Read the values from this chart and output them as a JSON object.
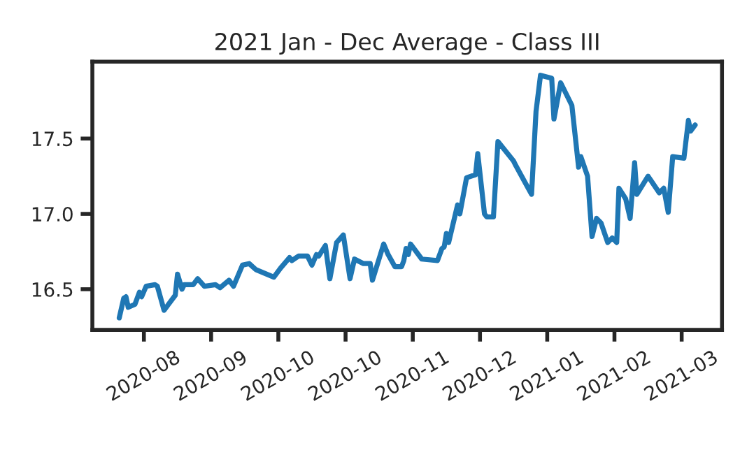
{
  "chart_data": {
    "type": "line",
    "title": "2021 Jan - Dec Average - Class III",
    "x": [
      "2020-07-22",
      "2020-07-24",
      "2020-07-25",
      "2020-07-26",
      "2020-07-29",
      "2020-07-31",
      "2020-08-01",
      "2020-08-03",
      "2020-08-07",
      "2020-08-08",
      "2020-08-11",
      "2020-08-13",
      "2020-08-16",
      "2020-08-17",
      "2020-08-19",
      "2020-08-20",
      "2020-08-24",
      "2020-08-26",
      "2020-08-29",
      "2020-09-03",
      "2020-09-05",
      "2020-09-09",
      "2020-09-11",
      "2020-09-15",
      "2020-09-18",
      "2020-09-21",
      "2020-09-29",
      "2020-10-02",
      "2020-10-06",
      "2020-10-07",
      "2020-10-10",
      "2020-10-14",
      "2020-10-16",
      "2020-10-18",
      "2020-10-19",
      "2020-10-22",
      "2020-10-24",
      "2020-10-27",
      "2020-10-30",
      "2020-11-02",
      "2020-11-04",
      "2020-11-08",
      "2020-11-11",
      "2020-11-12",
      "2020-11-17",
      "2020-11-19",
      "2020-11-22",
      "2020-11-25",
      "2020-11-26",
      "2020-11-27",
      "2020-11-28",
      "2020-11-29",
      "2020-12-04",
      "2020-12-11",
      "2020-12-13",
      "2020-12-14",
      "2020-12-15",
      "2020-12-16",
      "2020-12-20",
      "2020-12-21",
      "2020-12-24",
      "2020-12-28",
      "2020-12-29",
      "2021-01-01",
      "2021-01-02",
      "2021-01-05",
      "2021-01-07",
      "2021-01-14",
      "2021-01-15",
      "2021-01-22",
      "2021-01-24",
      "2021-01-26",
      "2021-01-31",
      "2021-02-01",
      "2021-02-04",
      "2021-02-09",
      "2021-02-12",
      "2021-02-13",
      "2021-02-16",
      "2021-02-18",
      "2021-02-20",
      "2021-02-22",
      "2021-02-25",
      "2021-02-27",
      "2021-03-01",
      "2021-03-02",
      "2021-03-05",
      "2021-03-07",
      "2021-03-09",
      "2021-03-10",
      "2021-03-15",
      "2021-03-20",
      "2021-03-22",
      "2021-03-24",
      "2021-03-26",
      "2021-03-31",
      "2021-04-02",
      "2021-04-03",
      "2021-04-05"
    ],
    "series": [
      {
        "color": "#1f77b4",
        "values": [
          16.31,
          16.44,
          16.45,
          16.38,
          16.4,
          16.48,
          16.45,
          16.52,
          16.53,
          16.52,
          16.36,
          16.4,
          16.46,
          16.6,
          16.5,
          16.53,
          16.53,
          16.57,
          16.52,
          16.53,
          16.51,
          16.56,
          16.52,
          16.66,
          16.67,
          16.63,
          16.58,
          16.64,
          16.71,
          16.69,
          16.72,
          16.72,
          16.66,
          16.73,
          16.72,
          16.79,
          16.57,
          16.81,
          16.86,
          16.57,
          16.7,
          16.67,
          16.67,
          16.56,
          16.8,
          16.73,
          16.65,
          16.65,
          16.69,
          16.77,
          16.73,
          16.8,
          16.7,
          16.69,
          16.77,
          16.78,
          16.87,
          16.81,
          17.06,
          17.0,
          17.24,
          17.26,
          17.4,
          17.0,
          16.98,
          16.98,
          17.48,
          17.35,
          17.32,
          17.13,
          17.68,
          17.92,
          17.9,
          17.63,
          17.87,
          17.72,
          17.31,
          17.38,
          17.25,
          16.85,
          16.97,
          16.94,
          16.81,
          16.84,
          16.81,
          17.17,
          17.1,
          16.97,
          17.34,
          17.13,
          17.25,
          17.14,
          17.17,
          17.01,
          17.38,
          17.37,
          17.62,
          17.55,
          17.59
        ]
      }
    ],
    "xlim": [
      "2020-07-10",
      "2021-04-17"
    ],
    "xticks": [
      {
        "value": "2020-08-02",
        "label": "2020-08"
      },
      {
        "value": "2020-09-01",
        "label": "2020-09"
      },
      {
        "value": "2020-10-01",
        "label": "2020-10"
      },
      {
        "value": "2020-10-31",
        "label": "2020-10"
      },
      {
        "value": "2020-11-30",
        "label": "2020-11"
      },
      {
        "value": "2020-12-30",
        "label": "2020-12"
      },
      {
        "value": "2021-01-29",
        "label": "2021-01"
      },
      {
        "value": "2021-02-28",
        "label": "2021-02"
      },
      {
        "value": "2021-03-30",
        "label": "2021-03"
      }
    ],
    "ylim": [
      16.23,
      18.01
    ],
    "yticks": [
      {
        "value": 16.5,
        "label": "16.5"
      },
      {
        "value": 17.0,
        "label": "17.0"
      },
      {
        "value": 17.5,
        "label": "17.5"
      }
    ],
    "grid": false,
    "line_style": "solid",
    "marker": "none"
  }
}
